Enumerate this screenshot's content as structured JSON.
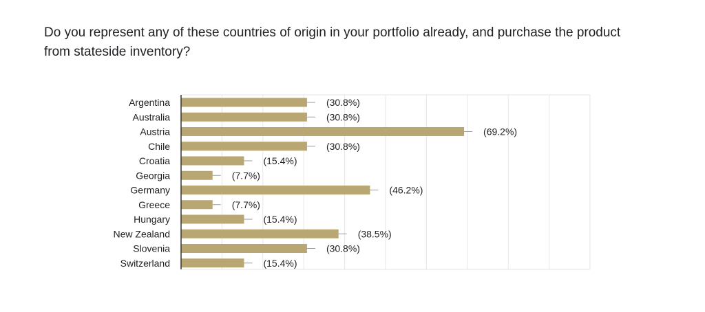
{
  "question": "Do you represent any of these countries of origin in your portfolio already, and purchase the product from stateside inventory?",
  "colors": {
    "bar": "#B9A773",
    "grid": "#E6E6E6",
    "axis": "#333333",
    "text": "#202124"
  },
  "chart_data": {
    "type": "bar",
    "orientation": "horizontal",
    "title": "",
    "xlabel": "",
    "ylabel": "",
    "xlim": [
      0,
      100
    ],
    "grid": true,
    "legend": "none",
    "categories": [
      "Argentina",
      "Australia",
      "Austria",
      "Chile",
      "Croatia",
      "Georgia",
      "Germany",
      "Greece",
      "Hungary",
      "New Zealand",
      "Slovenia",
      "Switzerland"
    ],
    "values": [
      30.8,
      30.8,
      69.2,
      30.8,
      15.4,
      7.7,
      46.2,
      7.7,
      15.4,
      38.5,
      30.8,
      15.4
    ],
    "data_labels": [
      "(30.8%)",
      "(30.8%)",
      "(69.2%)",
      "(30.8%)",
      "(15.4%)",
      "(7.7%)",
      "(46.2%)",
      "(7.7%)",
      "(15.4%)",
      "(38.5%)",
      "(30.8%)",
      "(15.4%)"
    ]
  }
}
